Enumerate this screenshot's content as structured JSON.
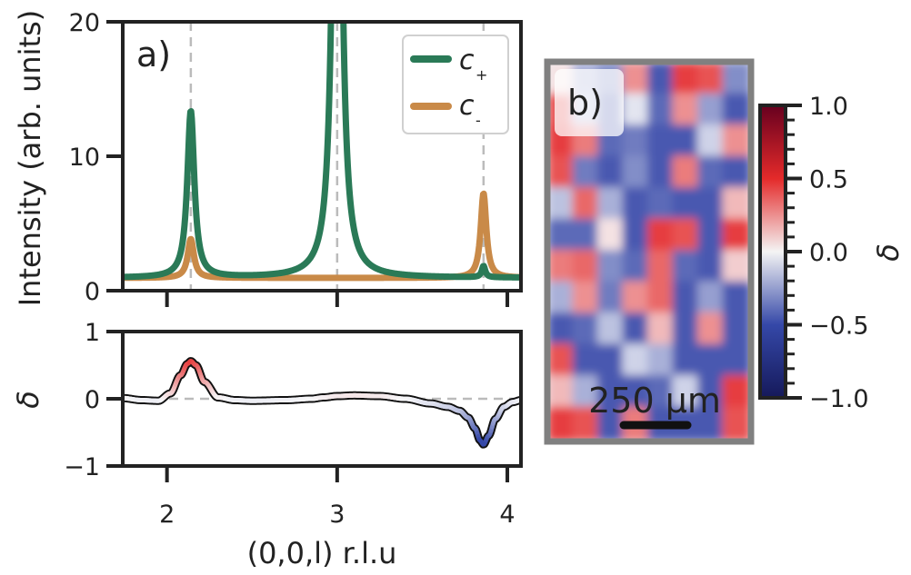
{
  "colors": {
    "c_plus": "#2a7a57",
    "c_minus": "#c98a48",
    "delta_pos": "#e42a2a",
    "delta_neg": "#3548a8",
    "axis": "#222222",
    "guide": "#bbbbbb",
    "frame": "#808080"
  },
  "chart_data": [
    {
      "panel": "a)",
      "type": "line",
      "xlim": [
        1.74,
        4.08
      ],
      "ylim": [
        0,
        20
      ],
      "xticks": [
        2,
        3,
        4
      ],
      "yticks": [
        0,
        10,
        20
      ],
      "ytick_labels": [
        "0",
        "10",
        "20"
      ],
      "ylabel": "Intensity (arb. units)",
      "vlines": [
        2.14,
        3.0,
        3.86
      ],
      "legend": {
        "position": "top-right",
        "entries": [
          {
            "name": "c",
            "sub": "+"
          },
          {
            "name": "c",
            "sub": "-"
          }
        ]
      },
      "series": [
        {
          "name": "c+",
          "background": 0.95,
          "peaks": [
            {
              "center": 2.14,
              "amplitude": 12.4,
              "width": 0.025
            },
            {
              "center": 3.0,
              "amplitude": 60,
              "width": 0.025
            },
            {
              "center": 3.86,
              "amplitude": 0.85,
              "width": 0.012
            }
          ]
        },
        {
          "name": "c-",
          "background": 0.95,
          "peaks": [
            {
              "center": 2.14,
              "amplitude": 2.9,
              "width": 0.022
            },
            {
              "center": 3.86,
              "amplitude": 6.3,
              "width": 0.02
            }
          ]
        }
      ]
    },
    {
      "panel": "delta",
      "type": "line",
      "xlim": [
        1.74,
        4.08
      ],
      "ylim": [
        -1,
        1
      ],
      "xticks": [
        2,
        3,
        4
      ],
      "xtick_labels": [
        "2",
        "3",
        "4"
      ],
      "yticks": [
        -1,
        0,
        1
      ],
      "ytick_labels": [
        "−1",
        "0",
        "1"
      ],
      "xlabel": "(0,0,l) r.l.u",
      "ylabel": "δ",
      "x": [
        1.74,
        1.85,
        1.95,
        2.02,
        2.08,
        2.12,
        2.14,
        2.17,
        2.22,
        2.3,
        2.4,
        2.5,
        2.7,
        2.85,
        2.92,
        3.0,
        3.1,
        3.25,
        3.4,
        3.55,
        3.65,
        3.72,
        3.77,
        3.81,
        3.84,
        3.86,
        3.89,
        3.93,
        3.98,
        4.03,
        4.08
      ],
      "y": [
        0.01,
        -0.02,
        -0.03,
        0.08,
        0.35,
        0.52,
        0.56,
        0.5,
        0.25,
        0.02,
        -0.02,
        -0.03,
        -0.02,
        0.0,
        0.02,
        0.04,
        0.05,
        0.04,
        0.0,
        -0.07,
        -0.12,
        -0.18,
        -0.28,
        -0.44,
        -0.62,
        -0.68,
        -0.55,
        -0.3,
        -0.12,
        -0.05,
        -0.02
      ],
      "baseline": 0
    },
    {
      "panel": "b)",
      "type": "heatmap",
      "scale_bar": "250 μm",
      "colorbar": {
        "label": "δ",
        "range": [
          -1.0,
          1.0
        ],
        "ticks": [
          1.0,
          0.5,
          0.0,
          -0.5,
          -1.0
        ],
        "tick_labels": [
          "1.0",
          "0.5",
          "0.0",
          "−0.5",
          "−1.0"
        ],
        "minor_ticks": 20
      },
      "grid": [
        [
          0.1,
          -0.4,
          -0.6,
          0.5,
          -0.9,
          0.9,
          0.8,
          -0.6
        ],
        [
          0.8,
          -0.3,
          -0.8,
          -0.1,
          -0.8,
          0.5,
          -0.5,
          -0.9
        ],
        [
          0.9,
          0.6,
          -0.8,
          -0.7,
          -0.9,
          -0.9,
          -0.2,
          0.5
        ],
        [
          0.8,
          -0.7,
          -0.9,
          -0.6,
          -0.9,
          0.6,
          -0.8,
          -0.9
        ],
        [
          -0.3,
          0.7,
          -0.4,
          -0.9,
          -0.8,
          -0.9,
          -0.9,
          0.3
        ],
        [
          -0.8,
          -0.8,
          0.1,
          -0.9,
          0.9,
          0.8,
          -0.9,
          0.9
        ],
        [
          0.6,
          0.7,
          -0.6,
          -0.8,
          0.7,
          -0.8,
          -0.9,
          0.2
        ],
        [
          -0.4,
          0.5,
          -0.7,
          0.5,
          0.7,
          -0.9,
          -0.5,
          -0.9
        ],
        [
          -0.9,
          -0.8,
          -0.3,
          -0.9,
          0.3,
          -0.9,
          0.5,
          -0.9
        ],
        [
          0.8,
          -0.9,
          -0.9,
          -0.2,
          -0.4,
          -0.9,
          -0.9,
          -0.9
        ],
        [
          0.3,
          -0.4,
          -0.9,
          -0.9,
          -0.8,
          -0.2,
          -0.9,
          0.9
        ],
        [
          0.9,
          0.8,
          -0.9,
          0.6,
          -0.9,
          -0.9,
          -0.9,
          0.8
        ]
      ]
    }
  ]
}
